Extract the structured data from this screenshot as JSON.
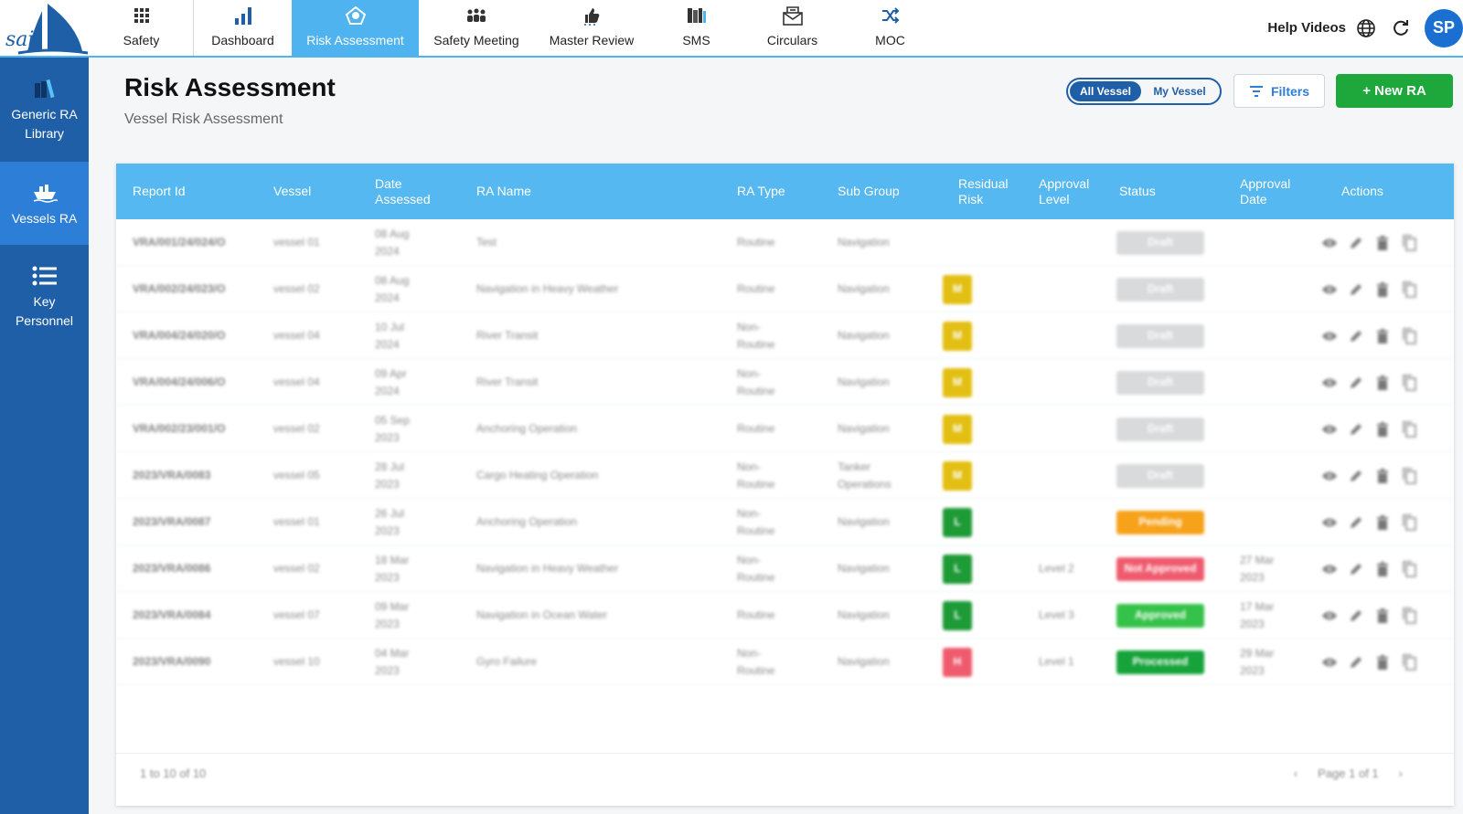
{
  "nav": {
    "items": [
      {
        "label": "Safety",
        "icon": "grid-icon"
      },
      {
        "label": "Dashboard",
        "icon": "bar-chart-icon"
      },
      {
        "label": "Risk Assessment",
        "icon": "risk-icon"
      },
      {
        "label": "Safety Meeting",
        "icon": "meeting-icon"
      },
      {
        "label": "Master Review",
        "icon": "thumbs-up-icon"
      },
      {
        "label": "SMS",
        "icon": "books-icon"
      },
      {
        "label": "Circulars",
        "icon": "envelope-icon"
      },
      {
        "label": "MOC",
        "icon": "shuffle-icon"
      }
    ],
    "help_label": "Help Videos",
    "avatar_initials": "SP"
  },
  "sidebar": {
    "items": [
      {
        "line1": "Generic RA",
        "line2": "Library",
        "icon": "library-icon"
      },
      {
        "line1": "Vessels RA",
        "line2": "",
        "icon": "ship-icon"
      },
      {
        "line1": "Key",
        "line2": "Personnel",
        "icon": "list-icon"
      }
    ]
  },
  "header": {
    "title": "Risk Assessment",
    "subtitle": "Vessel Risk Assessment",
    "toggle_all": "All Vessel",
    "toggle_my": "My Vessel",
    "filters_label": "Filters",
    "new_label": "+ New RA"
  },
  "table": {
    "columns": {
      "report_id": "Report Id",
      "vessel": "Vessel",
      "date_l1": "Date",
      "date_l2": "Assessed",
      "ra_name": "RA Name",
      "ra_type": "RA Type",
      "sub_group": "Sub Group",
      "risk_l1": "Residual",
      "risk_l2": "Risk",
      "appr_l1": "Approval",
      "appr_l2": "Level",
      "status": "Status",
      "apprdate_l1": "Approval",
      "apprdate_l2": "Date",
      "actions": "Actions"
    },
    "rows": [
      {
        "id": "VRA/001/24/024/O",
        "vessel": "vessel 01",
        "d1": "08 Aug",
        "d2": "2024",
        "name": "Test",
        "t1": "Routine",
        "t2": "",
        "g1": "Navigation",
        "g2": "",
        "risk": "",
        "level": "",
        "status": "Draft",
        "a1": "",
        "a2": ""
      },
      {
        "id": "VRA/002/24/023/O",
        "vessel": "vessel 02",
        "d1": "08 Aug",
        "d2": "2024",
        "name": "Navigation in Heavy Weather",
        "t1": "Routine",
        "t2": "",
        "g1": "Navigation",
        "g2": "",
        "risk": "M",
        "level": "",
        "status": "Draft",
        "a1": "",
        "a2": ""
      },
      {
        "id": "VRA/004/24/020/O",
        "vessel": "vessel 04",
        "d1": "10 Jul",
        "d2": "2024",
        "name": "River Transit",
        "t1": "Non-",
        "t2": "Routine",
        "g1": "Navigation",
        "g2": "",
        "risk": "M",
        "level": "",
        "status": "Draft",
        "a1": "",
        "a2": ""
      },
      {
        "id": "VRA/004/24/006/O",
        "vessel": "vessel 04",
        "d1": "09 Apr",
        "d2": "2024",
        "name": "River Transit",
        "t1": "Non-",
        "t2": "Routine",
        "g1": "Navigation",
        "g2": "",
        "risk": "M",
        "level": "",
        "status": "Draft",
        "a1": "",
        "a2": ""
      },
      {
        "id": "VRA/002/23/001/O",
        "vessel": "vessel 02",
        "d1": "05 Sep",
        "d2": "2023",
        "name": "Anchoring Operation",
        "t1": "Routine",
        "t2": "",
        "g1": "Navigation",
        "g2": "",
        "risk": "M",
        "level": "",
        "status": "Draft",
        "a1": "",
        "a2": ""
      },
      {
        "id": "2023/VRA/0083",
        "vessel": "vessel 05",
        "d1": "28 Jul",
        "d2": "2023",
        "name": "Cargo Heating Operation",
        "t1": "Non-",
        "t2": "Routine",
        "g1": "Tanker",
        "g2": "Operations",
        "risk": "M",
        "level": "",
        "status": "Draft",
        "a1": "",
        "a2": ""
      },
      {
        "id": "2023/VRA/0087",
        "vessel": "vessel 01",
        "d1": "26 Jul",
        "d2": "2023",
        "name": "Anchoring Operation",
        "t1": "Non-",
        "t2": "Routine",
        "g1": "Navigation",
        "g2": "",
        "risk": "L",
        "level": "",
        "status": "Pending",
        "a1": "",
        "a2": ""
      },
      {
        "id": "2023/VRA/0086",
        "vessel": "vessel 02",
        "d1": "18 Mar",
        "d2": "2023",
        "name": "Navigation in Heavy Weather",
        "t1": "Non-",
        "t2": "Routine",
        "g1": "Navigation",
        "g2": "",
        "risk": "L",
        "level": "Level 2",
        "status": "Not Approved",
        "a1": "27 Mar",
        "a2": "2023"
      },
      {
        "id": "2023/VRA/0084",
        "vessel": "vessel 07",
        "d1": "09 Mar",
        "d2": "2023",
        "name": "Navigation in Ocean Water",
        "t1": "Routine",
        "t2": "",
        "g1": "Navigation",
        "g2": "",
        "risk": "L",
        "level": "Level 3",
        "status": "Approved",
        "a1": "17 Mar",
        "a2": "2023"
      },
      {
        "id": "2023/VRA/0090",
        "vessel": "vessel 10",
        "d1": "04 Mar",
        "d2": "2023",
        "name": "Gyro Failure",
        "t1": "Non-",
        "t2": "Routine",
        "g1": "Navigation",
        "g2": "",
        "risk": "H",
        "level": "Level 1",
        "status": "Processed",
        "a1": "29 Mar",
        "a2": "2023"
      }
    ],
    "count_text": "1 to 10 of 10",
    "page_text": "Page 1 of 1",
    "prev_symbol": "‹",
    "next_symbol": "›"
  },
  "colors": {
    "accent": "#55b8f0",
    "sidebar": "#1f5fa8",
    "new_button": "#1ea83c",
    "risk_m": "#e2bf12",
    "risk_l": "#1e9a37",
    "risk_h": "#ef5b6e",
    "status_draft": "#d9dadc",
    "status_pending": "#f7a21b",
    "status_not_approved": "#ef5b6e",
    "status_approved": "#35c24a",
    "status_processed": "#16a33a"
  }
}
